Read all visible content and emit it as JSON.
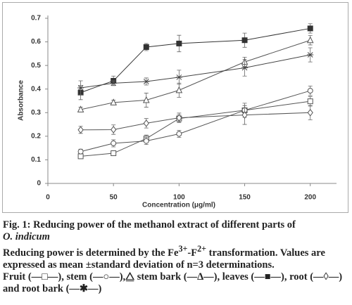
{
  "chart_data": {
    "type": "line",
    "x_label": "Concentration (μg/ml)",
    "y_label": "Absorbance",
    "x": [
      25,
      50,
      75,
      100,
      150,
      200
    ],
    "xlim": [
      0,
      220
    ],
    "xticks": [
      0,
      50,
      100,
      150,
      200
    ],
    "ylim": [
      0,
      0.7
    ],
    "yticks": [
      0,
      0.1,
      0.2,
      0.3,
      0.4,
      0.5,
      0.6,
      0.7
    ],
    "grid": false,
    "series": [
      {
        "marker": "square-open",
        "color": "#555555",
        "values": [
          0.115,
          0.128,
          0.19,
          0.275,
          0.31,
          0.348
        ],
        "errors": [
          0.01,
          0.01,
          0.015,
          0.015,
          0.02,
          0.02
        ]
      },
      {
        "marker": "circle-open",
        "color": "#555555",
        "values": [
          0.135,
          0.17,
          0.18,
          0.21,
          0.31,
          0.393
        ],
        "errors": [
          0.01,
          0.015,
          0.015,
          0.015,
          0.03,
          0.02
        ]
      },
      {
        "marker": "triangle-open",
        "color": "#555555",
        "values": [
          0.313,
          0.343,
          0.353,
          0.395,
          0.515,
          0.607
        ],
        "errors": [
          0.01,
          0.01,
          0.03,
          0.03,
          0.02,
          0.02
        ]
      },
      {
        "marker": "square-filled",
        "color": "#333333",
        "values": [
          0.385,
          0.435,
          0.578,
          0.593,
          0.607,
          0.657
        ],
        "errors": [
          0.03,
          0.02,
          0.015,
          0.035,
          0.03,
          0.02
        ]
      },
      {
        "marker": "diamond-open",
        "color": "#555555",
        "values": [
          0.227,
          0.228,
          0.255,
          0.278,
          0.29,
          0.3
        ],
        "errors": [
          0.015,
          0.02,
          0.02,
          0.02,
          0.04,
          0.03
        ]
      },
      {
        "marker": "asterisk",
        "color": "#444444",
        "values": [
          0.405,
          0.425,
          0.432,
          0.45,
          0.49,
          0.545
        ],
        "errors": [
          0.03,
          0.01,
          0.015,
          0.03,
          0.035,
          0.03
        ]
      }
    ]
  },
  "caption": {
    "fig_title": "Fig. 1: Reducing power of the methanol extract of different parts of",
    "species": "O. indicum",
    "note_parts": [
      "Reducing power is determined by the Fe",
      "3+",
      "-F",
      "2+",
      " transformation. Values are expressed as mean ±standard deviation of n=3 determinations."
    ],
    "legend": "Fruit (—□—), stem (—○—),⧋ stem bark (—Δ—), leaves (—■—), root (—◊—) and root bark (—✱—)"
  }
}
